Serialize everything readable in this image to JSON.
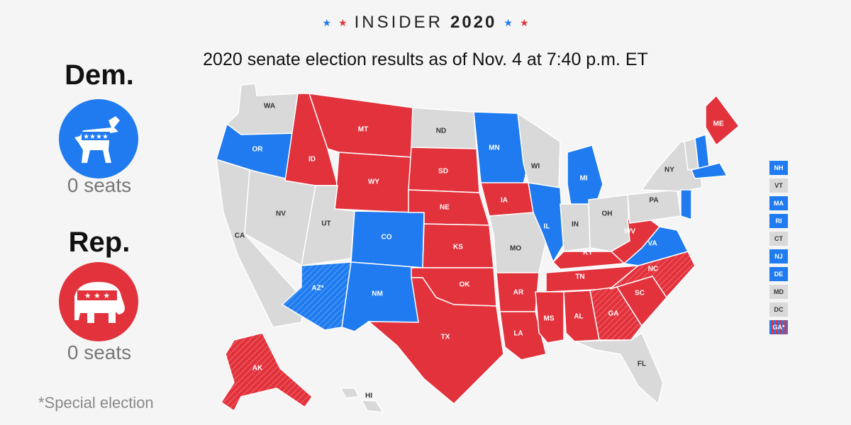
{
  "header": {
    "brand": "INSIDER",
    "year": "2020"
  },
  "subtitle": "2020 senate election results as of Nov. 4 at 7:40 p.m. ET",
  "colors": {
    "dem": "#1f7bef",
    "rep": "#e2323c",
    "none": "#d9d9d9",
    "border": "#ffffff"
  },
  "parties": {
    "dem": {
      "name": "Dem.",
      "seats": "0 seats",
      "icon": "donkey-icon"
    },
    "rep": {
      "name": "Rep.",
      "seats": "0 seats",
      "icon": "elephant-icon"
    }
  },
  "footnote": "*Special election",
  "states": [
    {
      "code": "WA",
      "label": "WA",
      "status": "none"
    },
    {
      "code": "OR",
      "label": "OR",
      "status": "dem"
    },
    {
      "code": "CA",
      "label": "CA",
      "status": "none"
    },
    {
      "code": "NV",
      "label": "NV",
      "status": "none"
    },
    {
      "code": "ID",
      "label": "ID",
      "status": "rep"
    },
    {
      "code": "MT",
      "label": "MT",
      "status": "rep"
    },
    {
      "code": "WY",
      "label": "WY",
      "status": "rep"
    },
    {
      "code": "UT",
      "label": "UT",
      "status": "none"
    },
    {
      "code": "CO",
      "label": "CO",
      "status": "dem"
    },
    {
      "code": "AZ",
      "label": "AZ*",
      "status": "dem",
      "special": true
    },
    {
      "code": "NM",
      "label": "NM",
      "status": "dem"
    },
    {
      "code": "ND",
      "label": "ND",
      "status": "none"
    },
    {
      "code": "SD",
      "label": "SD",
      "status": "rep"
    },
    {
      "code": "NE",
      "label": "NE",
      "status": "rep"
    },
    {
      "code": "KS",
      "label": "KS",
      "status": "rep"
    },
    {
      "code": "OK",
      "label": "OK",
      "status": "rep"
    },
    {
      "code": "TX",
      "label": "TX",
      "status": "rep"
    },
    {
      "code": "MN",
      "label": "MN",
      "status": "dem"
    },
    {
      "code": "IA",
      "label": "IA",
      "status": "rep"
    },
    {
      "code": "MO",
      "label": "MO",
      "status": "none"
    },
    {
      "code": "AR",
      "label": "AR",
      "status": "rep"
    },
    {
      "code": "LA",
      "label": "LA",
      "status": "rep"
    },
    {
      "code": "WI",
      "label": "WI",
      "status": "none"
    },
    {
      "code": "IL",
      "label": "IL",
      "status": "dem"
    },
    {
      "code": "MI",
      "label": "MI",
      "status": "dem"
    },
    {
      "code": "IN",
      "label": "IN",
      "status": "none"
    },
    {
      "code": "OH",
      "label": "OH",
      "status": "none"
    },
    {
      "code": "KY",
      "label": "KY",
      "status": "rep"
    },
    {
      "code": "TN",
      "label": "TN",
      "status": "rep"
    },
    {
      "code": "MS",
      "label": "MS",
      "status": "rep"
    },
    {
      "code": "AL",
      "label": "AL",
      "status": "rep"
    },
    {
      "code": "GA",
      "label": "GA",
      "status": "rep",
      "special": true
    },
    {
      "code": "FL",
      "label": "FL",
      "status": "none"
    },
    {
      "code": "SC",
      "label": "SC",
      "status": "rep"
    },
    {
      "code": "NC",
      "label": "NC",
      "status": "rep",
      "special": true
    },
    {
      "code": "VA",
      "label": "VA",
      "status": "dem"
    },
    {
      "code": "WV",
      "label": "WV",
      "status": "rep"
    },
    {
      "code": "PA",
      "label": "PA",
      "status": "none"
    },
    {
      "code": "NY",
      "label": "NY",
      "status": "none"
    },
    {
      "code": "ME",
      "label": "ME",
      "status": "rep"
    },
    {
      "code": "NH",
      "label": "",
      "status": "dem"
    },
    {
      "code": "VT",
      "label": "",
      "status": "none"
    },
    {
      "code": "MA",
      "label": "",
      "status": "dem"
    },
    {
      "code": "NJ",
      "label": "",
      "status": "dem"
    },
    {
      "code": "AK",
      "label": "AK",
      "status": "rep",
      "special": true
    },
    {
      "code": "HI",
      "label": "HI",
      "status": "none"
    }
  ],
  "small_states": [
    {
      "label": "NH",
      "status": "dem"
    },
    {
      "label": "VT",
      "status": "none"
    },
    {
      "label": "MA",
      "status": "dem"
    },
    {
      "label": "RI",
      "status": "dem"
    },
    {
      "label": "CT",
      "status": "none"
    },
    {
      "label": "NJ",
      "status": "dem"
    },
    {
      "label": "DE",
      "status": "dem"
    },
    {
      "label": "MD",
      "status": "none"
    },
    {
      "label": "DC",
      "status": "none"
    },
    {
      "label": "GA*",
      "status": "mixed"
    }
  ]
}
